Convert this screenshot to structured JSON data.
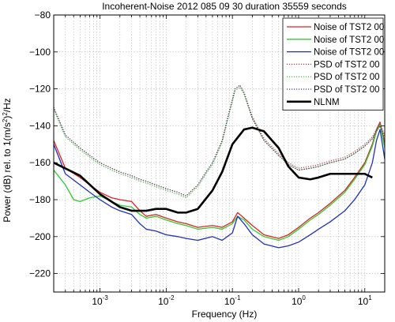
{
  "chart_data": {
    "type": "line",
    "title": "Incoherent-Noise 2012 085 09 30 duration 35559 seconds",
    "xlabel": "Frequency (Hz)",
    "ylabel": "Power (dB) rel. to 1(m/s²)²/Hz",
    "ylabel_parts": {
      "pre": "Power (dB) rel. to 1(m/s",
      "sup1": "2",
      "mid": ")",
      "sup2": "2",
      "post": "/Hz"
    },
    "xscale": "log",
    "xlim": [
      0.0002,
      20
    ],
    "ylim": [
      -230,
      -80
    ],
    "grid": true,
    "legend_position": "top-right",
    "x_ticks": [
      {
        "value": 0.001,
        "base": "10",
        "exp": "-3"
      },
      {
        "value": 0.01,
        "base": "10",
        "exp": "-2"
      },
      {
        "value": 0.1,
        "base": "10",
        "exp": "-1"
      },
      {
        "value": 1,
        "base": "10",
        "exp": "0"
      },
      {
        "value": 10,
        "base": "10",
        "exp": "1"
      }
    ],
    "y_ticks": [
      {
        "value": -80,
        "label": "−80"
      },
      {
        "value": -100,
        "label": "−100"
      },
      {
        "value": -120,
        "label": "−120"
      },
      {
        "value": -140,
        "label": "−140"
      },
      {
        "value": -160,
        "label": "−160"
      },
      {
        "value": -180,
        "label": "−180"
      },
      {
        "value": -200,
        "label": "−200"
      },
      {
        "value": -220,
        "label": "−220"
      }
    ],
    "series": [
      {
        "name": "Noise of TST2 00",
        "color": "#e02020",
        "style": "solid",
        "width": 1.3,
        "x": [
          0.0002,
          0.0003,
          0.0005,
          0.0007,
          0.001,
          0.0015,
          0.002,
          0.003,
          0.004,
          0.005,
          0.007,
          0.01,
          0.015,
          0.02,
          0.03,
          0.05,
          0.07,
          0.1,
          0.12,
          0.15,
          0.2,
          0.3,
          0.5,
          0.7,
          1,
          1.5,
          2,
          3,
          5,
          7,
          10,
          13,
          15,
          17,
          20
        ],
        "y": [
          -148,
          -163,
          -168,
          -172,
          -176,
          -179,
          -180,
          -181,
          -186,
          -189,
          -188,
          -190,
          -192,
          -193,
          -195,
          -194,
          -195,
          -192,
          -187,
          -190,
          -194,
          -199,
          -201,
          -199,
          -195,
          -190,
          -187,
          -182,
          -175,
          -168,
          -160,
          -150,
          -142,
          -138,
          -150
        ]
      },
      {
        "name": "Noise of TST2 00",
        "color": "#30cc30",
        "style": "solid",
        "width": 1.3,
        "x": [
          0.0002,
          0.0003,
          0.0004,
          0.0005,
          0.0007,
          0.001,
          0.0015,
          0.002,
          0.003,
          0.004,
          0.005,
          0.007,
          0.01,
          0.015,
          0.02,
          0.03,
          0.05,
          0.07,
          0.1,
          0.12,
          0.15,
          0.2,
          0.3,
          0.5,
          0.7,
          1,
          1.5,
          2,
          3,
          5,
          7,
          10,
          13,
          15,
          17,
          20
        ],
        "y": [
          -164,
          -172,
          -180,
          -181,
          -179,
          -178,
          -181,
          -183,
          -184,
          -188,
          -190,
          -189,
          -191,
          -193,
          -194,
          -196,
          -195,
          -196,
          -193,
          -189,
          -191,
          -196,
          -200,
          -202,
          -200,
          -196,
          -191,
          -188,
          -183,
          -176,
          -169,
          -161,
          -151,
          -143,
          -139,
          -152
        ]
      },
      {
        "name": "Noise of TST2 00",
        "color": "#2030c0",
        "style": "solid",
        "width": 1.3,
        "x": [
          0.0002,
          0.0003,
          0.0005,
          0.0007,
          0.001,
          0.0015,
          0.002,
          0.003,
          0.004,
          0.005,
          0.007,
          0.01,
          0.015,
          0.02,
          0.03,
          0.05,
          0.07,
          0.1,
          0.12,
          0.15,
          0.2,
          0.3,
          0.5,
          0.7,
          1,
          1.5,
          2,
          3,
          5,
          7,
          10,
          13,
          15,
          17,
          20
        ],
        "y": [
          -150,
          -166,
          -172,
          -176,
          -180,
          -184,
          -186,
          -188,
          -193,
          -196,
          -197,
          -199,
          -200,
          -201,
          -202,
          -200,
          -202,
          -198,
          -189,
          -193,
          -199,
          -204,
          -206,
          -205,
          -203,
          -199,
          -196,
          -192,
          -186,
          -180,
          -172,
          -160,
          -148,
          -142,
          -158
        ]
      },
      {
        "name": "PSD of TST2 00",
        "color": "#c03050",
        "style": "dotted",
        "width": 1.2,
        "x": [
          0.0002,
          0.0003,
          0.0005,
          0.0007,
          0.001,
          0.0015,
          0.002,
          0.003,
          0.004,
          0.005,
          0.007,
          0.01,
          0.015,
          0.02,
          0.03,
          0.04,
          0.05,
          0.07,
          0.09,
          0.11,
          0.13,
          0.15,
          0.2,
          0.3,
          0.5,
          0.7,
          1,
          1.5,
          2,
          3,
          5,
          7,
          10,
          13,
          15,
          17,
          20
        ],
        "y": [
          -130,
          -145,
          -152,
          -156,
          -160,
          -163,
          -165,
          -167,
          -169,
          -170,
          -172,
          -174,
          -176,
          -178,
          -172,
          -165,
          -160,
          -148,
          -132,
          -120,
          -118,
          -122,
          -135,
          -147,
          -155,
          -160,
          -163,
          -162,
          -161,
          -159,
          -157,
          -154,
          -150,
          -146,
          -142,
          -139,
          -145
        ]
      },
      {
        "name": "PSD of TST2 00",
        "color": "#40a840",
        "style": "dotted",
        "width": 1.2,
        "x": [
          0.0002,
          0.0003,
          0.0005,
          0.0007,
          0.001,
          0.0015,
          0.002,
          0.003,
          0.004,
          0.005,
          0.007,
          0.01,
          0.015,
          0.02,
          0.03,
          0.04,
          0.05,
          0.07,
          0.09,
          0.11,
          0.13,
          0.15,
          0.2,
          0.3,
          0.5,
          0.7,
          1,
          1.5,
          2,
          3,
          5,
          7,
          10,
          13,
          15,
          17,
          20
        ],
        "y": [
          -131,
          -146,
          -153,
          -157,
          -161,
          -164,
          -166,
          -168,
          -170,
          -171,
          -173,
          -175,
          -177,
          -179,
          -173,
          -166,
          -161,
          -149,
          -133,
          -121,
          -119,
          -123,
          -136,
          -148,
          -156,
          -161,
          -164,
          -163,
          -162,
          -160,
          -158,
          -155,
          -151,
          -147,
          -143,
          -140,
          -146
        ]
      },
      {
        "name": "PSD of TST2 00",
        "color": "#404060",
        "style": "dotted",
        "width": 1.2,
        "x": [
          0.0002,
          0.0003,
          0.0005,
          0.0007,
          0.001,
          0.0015,
          0.002,
          0.003,
          0.004,
          0.005,
          0.007,
          0.01,
          0.015,
          0.02,
          0.03,
          0.04,
          0.05,
          0.07,
          0.09,
          0.11,
          0.13,
          0.15,
          0.2,
          0.3,
          0.5,
          0.7,
          1,
          1.5,
          2,
          3,
          5,
          7,
          10,
          13,
          15,
          17,
          20
        ],
        "y": [
          -130,
          -145,
          -152,
          -156,
          -160,
          -163,
          -165,
          -167,
          -169,
          -170,
          -172,
          -174,
          -176,
          -178,
          -172,
          -165,
          -160,
          -148,
          -132,
          -120,
          -118,
          -122,
          -136,
          -148,
          -156,
          -161,
          -164,
          -163,
          -162,
          -160,
          -158,
          -155,
          -151,
          -147,
          -143,
          -140,
          -147
        ]
      },
      {
        "name": "NLNM",
        "color": "#000000",
        "style": "solid",
        "width": 2.6,
        "x": [
          0.0002,
          0.0005,
          0.001,
          0.002,
          0.003,
          0.005,
          0.007,
          0.01,
          0.015,
          0.02,
          0.03,
          0.05,
          0.07,
          0.1,
          0.15,
          0.2,
          0.3,
          0.5,
          0.7,
          1,
          1.5,
          2,
          3,
          5,
          7,
          10,
          13
        ],
        "y": [
          -160,
          -167,
          -177,
          -184,
          -186,
          -186,
          -185,
          -185,
          -187,
          -187,
          -185,
          -175,
          -165,
          -150,
          -142,
          -141,
          -143,
          -152,
          -162,
          -168,
          -169,
          -168,
          -166,
          -166,
          -166,
          -166,
          -168
        ]
      }
    ]
  }
}
